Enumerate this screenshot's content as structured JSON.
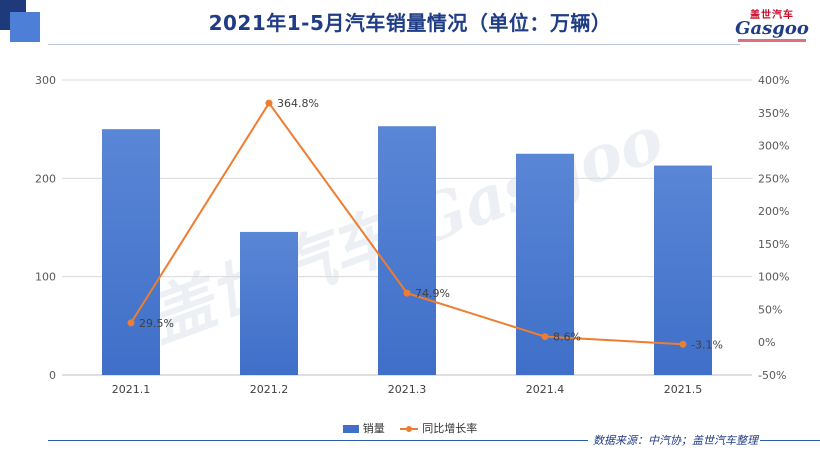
{
  "title": "2021年1-5月汽车销量情况（单位：万辆）",
  "logo": {
    "cn": "盖世汽车",
    "en": "Gasgoo"
  },
  "source": "数据来源：中汽协；盖世汽车整理",
  "watermark": "盖世汽车 Gasgoo",
  "colors": {
    "bar": "#3f6fc8",
    "line": "#ed7d31",
    "title": "#1f3c84"
  },
  "chart_data": {
    "type": "bar+line",
    "categories": [
      "2021.1",
      "2021.2",
      "2021.3",
      "2021.4",
      "2021.5"
    ],
    "series": [
      {
        "name": "销量",
        "type": "bar",
        "axis": "left",
        "values": [
          250,
          145.5,
          253,
          225,
          213
        ]
      },
      {
        "name": "同比增长率",
        "type": "line",
        "axis": "right",
        "values": [
          29.5,
          364.8,
          74.9,
          8.6,
          -3.1
        ],
        "labels": [
          "29.5%",
          "364.8%",
          "74.9%",
          "8.6%",
          "-3.1%"
        ]
      }
    ],
    "y_left": {
      "min": 0,
      "max": 300,
      "ticks": [
        0,
        100,
        200,
        300
      ]
    },
    "y_right": {
      "min": -50,
      "max": 400,
      "ticks": [
        -50,
        0,
        50,
        100,
        150,
        200,
        250,
        300,
        350,
        400
      ],
      "tick_labels": [
        "-50%",
        "0%",
        "50%",
        "100%",
        "150%",
        "200%",
        "250%",
        "300%",
        "350%",
        "400%"
      ]
    },
    "legend_position": "bottom",
    "grid": "horizontal"
  }
}
